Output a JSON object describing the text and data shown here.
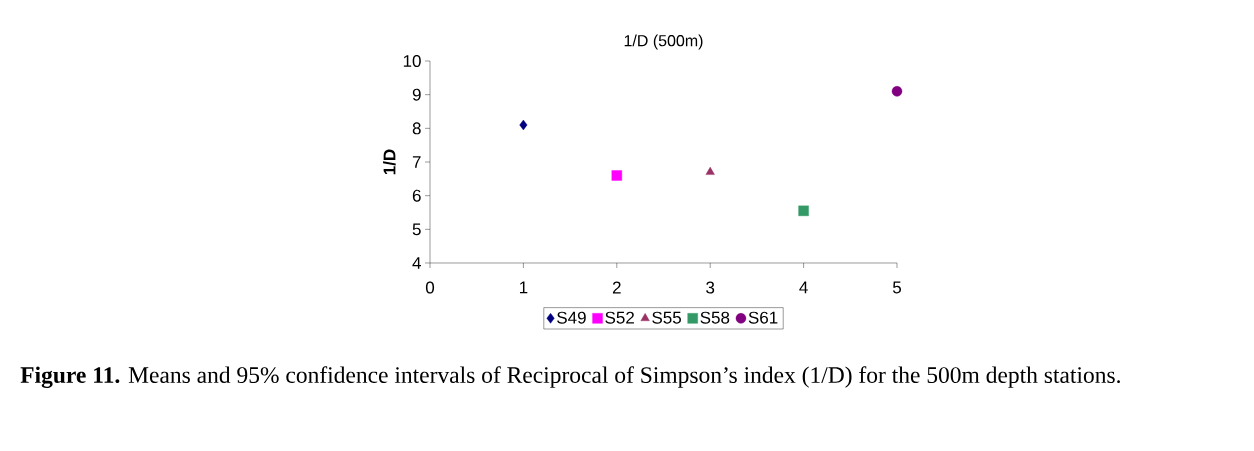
{
  "chart_data": {
    "type": "scatter",
    "title": "1/D (500m)",
    "ylabel": "1/D",
    "xlim": [
      0,
      5
    ],
    "xticks": [
      0,
      1,
      2,
      3,
      4,
      5
    ],
    "ylim": [
      4,
      10
    ],
    "yticks": [
      4,
      5,
      6,
      7,
      8,
      9,
      10
    ],
    "grid": false,
    "legend": "bottom",
    "series": [
      {
        "name": "S49",
        "color": "#000080",
        "marker": "diamond",
        "x": [
          1
        ],
        "values": [
          8.1
        ]
      },
      {
        "name": "S52",
        "color": "#ff00ff",
        "marker": "square",
        "x": [
          2
        ],
        "values": [
          6.6
        ]
      },
      {
        "name": "S55",
        "color": "#993366",
        "marker": "triangle",
        "x": [
          3
        ],
        "values": [
          6.7
        ]
      },
      {
        "name": "S58",
        "color": "#339966",
        "marker": "square",
        "x": [
          4
        ],
        "values": [
          5.55
        ]
      },
      {
        "name": "S61",
        "color": "#800080",
        "marker": "circle",
        "x": [
          5
        ],
        "values": [
          9.1
        ]
      }
    ],
    "annotations": [
      "**Figure 11.** Means and 95% confidence intervals of Reciprocal of Simpson’s index (1/D) for the 500m depth stations."
    ]
  }
}
